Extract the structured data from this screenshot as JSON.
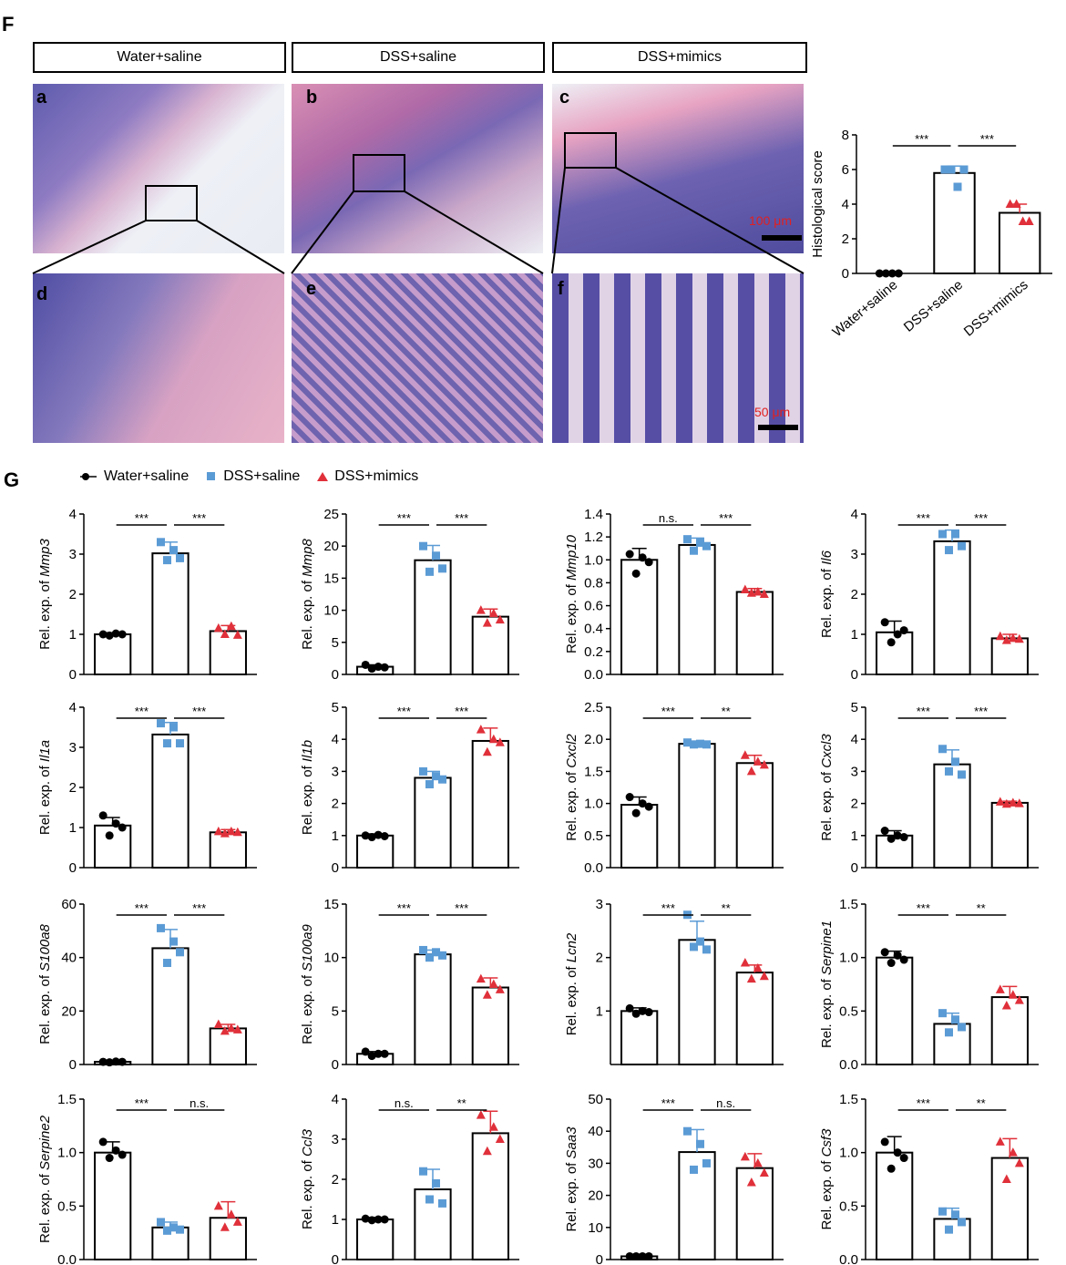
{
  "panel_f": {
    "letter": "F",
    "headers": [
      "Water+saline",
      "DSS+saline",
      "DSS+mimics"
    ],
    "sub_letters": [
      "a",
      "b",
      "c",
      "d",
      "e",
      "f"
    ],
    "scale_top": "100 μm",
    "scale_bottom": "50 μm"
  },
  "panel_g": {
    "letter": "G",
    "legend": [
      {
        "label": "Water+saline",
        "color": "#000000",
        "marker": "circle"
      },
      {
        "label": "DSS+saline",
        "color": "#5b9bd5",
        "marker": "square"
      },
      {
        "label": "DSS+mimics",
        "color": "#e0303a",
        "marker": "triangle"
      }
    ]
  },
  "chart_data": [
    {
      "type": "bar",
      "panel": "F",
      "ylabel": "Histological score",
      "categories": [
        "Water+saline",
        "DSS+saline",
        "DSS+mimics"
      ],
      "values": [
        0,
        5.8,
        3.5
      ],
      "errors": [
        0,
        0.4,
        0.5
      ],
      "points": [
        [
          0,
          0,
          0,
          0
        ],
        [
          6,
          6,
          5,
          6
        ],
        [
          4,
          4,
          3,
          3
        ]
      ],
      "ylim": [
        0,
        8
      ],
      "yticks": [
        "0",
        "2",
        "4",
        "6",
        "8"
      ],
      "sig": [
        "***",
        "***"
      ]
    },
    {
      "type": "bar",
      "ylabel_prefix": "Rel. exp. of ",
      "gene": "Mmp3",
      "values": [
        1.0,
        3.02,
        1.08
      ],
      "errors": [
        0.04,
        0.28,
        0.14
      ],
      "points": [
        [
          1.0,
          0.97,
          1.02,
          1.0
        ],
        [
          3.3,
          2.85,
          3.1,
          2.9
        ],
        [
          1.15,
          1.0,
          1.2,
          0.98
        ]
      ],
      "ylim": [
        0,
        4
      ],
      "yticks": [
        "0",
        "1",
        "2",
        "3",
        "4"
      ],
      "sig": [
        "***",
        "***"
      ]
    },
    {
      "type": "bar",
      "ylabel_prefix": "Rel. exp. of ",
      "gene": "Mmp8",
      "values": [
        1.2,
        17.8,
        9.0
      ],
      "errors": [
        0.3,
        2.3,
        1.2
      ],
      "points": [
        [
          1.5,
          0.9,
          1.2,
          1.1
        ],
        [
          20,
          16,
          18.5,
          16.5
        ],
        [
          10,
          8,
          9.5,
          8.5
        ]
      ],
      "ylim": [
        0,
        25
      ],
      "yticks": [
        "0",
        "5",
        "10",
        "15",
        "20",
        "25"
      ],
      "sig": [
        "***",
        "***"
      ]
    },
    {
      "type": "bar",
      "ylabel_prefix": "Rel. exp. of ",
      "gene": "Mmp10",
      "values": [
        1.0,
        1.13,
        0.72
      ],
      "errors": [
        0.1,
        0.06,
        0.03
      ],
      "points": [
        [
          1.05,
          0.88,
          1.02,
          0.98
        ],
        [
          1.18,
          1.08,
          1.15,
          1.12
        ],
        [
          0.74,
          0.71,
          0.72,
          0.7
        ]
      ],
      "ylim": [
        0,
        1.4
      ],
      "yticks": [
        "0.0",
        "0.2",
        "0.4",
        "0.6",
        "0.8",
        "1.0",
        "1.2",
        "1.4"
      ],
      "sig": [
        "n.s.",
        "***"
      ]
    },
    {
      "type": "bar",
      "ylabel_prefix": "Rel. exp. of ",
      "gene": "Il6",
      "values": [
        1.05,
        3.32,
        0.9
      ],
      "errors": [
        0.28,
        0.28,
        0.1
      ],
      "points": [
        [
          1.3,
          0.8,
          1.0,
          1.1
        ],
        [
          3.5,
          3.1,
          3.5,
          3.2
        ],
        [
          0.95,
          0.85,
          0.9,
          0.88
        ]
      ],
      "ylim": [
        0,
        4
      ],
      "yticks": [
        "0",
        "1",
        "2",
        "3",
        "4"
      ],
      "sig": [
        "***",
        "***"
      ]
    },
    {
      "type": "bar",
      "ylabel_prefix": "Rel. exp. of ",
      "gene": "Il1a",
      "values": [
        1.05,
        3.32,
        0.88
      ],
      "errors": [
        0.2,
        0.3,
        0.07
      ],
      "points": [
        [
          1.3,
          0.8,
          1.1,
          1.0
        ],
        [
          3.6,
          3.1,
          3.5,
          3.1
        ],
        [
          0.9,
          0.85,
          0.9,
          0.88
        ]
      ],
      "ylim": [
        0,
        4
      ],
      "yticks": [
        "0",
        "1",
        "2",
        "3",
        "4"
      ],
      "sig": [
        "***",
        "***"
      ]
    },
    {
      "type": "bar",
      "ylabel_prefix": "Rel. exp. of ",
      "gene": "Il1b",
      "values": [
        1.0,
        2.8,
        3.95
      ],
      "errors": [
        0.05,
        0.2,
        0.4
      ],
      "points": [
        [
          1.0,
          0.95,
          1.02,
          0.98
        ],
        [
          3.0,
          2.6,
          2.85,
          2.75
        ],
        [
          4.3,
          3.6,
          4.0,
          3.9
        ]
      ],
      "ylim": [
        0,
        5
      ],
      "yticks": [
        "0",
        "1",
        "2",
        "3",
        "4",
        "5"
      ],
      "sig": [
        "***",
        "***"
      ]
    },
    {
      "type": "bar",
      "ylabel_prefix": "Rel. exp. of ",
      "gene": "Cxcl2",
      "values": [
        0.98,
        1.93,
        1.63
      ],
      "errors": [
        0.12,
        0.02,
        0.12
      ],
      "points": [
        [
          1.1,
          0.85,
          1.0,
          0.95
        ],
        [
          1.95,
          1.92,
          1.93,
          1.92
        ],
        [
          1.75,
          1.5,
          1.65,
          1.6
        ]
      ],
      "ylim": [
        0,
        2.5
      ],
      "yticks": [
        "0.0",
        "0.5",
        "1.0",
        "1.5",
        "2.0",
        "2.5"
      ],
      "sig": [
        "***",
        "**"
      ]
    },
    {
      "type": "bar",
      "ylabel_prefix": "Rel. exp. of ",
      "gene": "Cxcl3",
      "values": [
        1.0,
        3.22,
        2.02
      ],
      "errors": [
        0.15,
        0.45,
        0.05
      ],
      "points": [
        [
          1.15,
          0.9,
          1.0,
          0.95
        ],
        [
          3.7,
          3.0,
          3.3,
          2.9
        ],
        [
          2.05,
          1.98,
          2.02,
          2.0
        ]
      ],
      "ylim": [
        0,
        5
      ],
      "yticks": [
        "0",
        "1",
        "2",
        "3",
        "4",
        "5"
      ],
      "sig": [
        "***",
        "***"
      ]
    },
    {
      "type": "bar",
      "ylabel_prefix": "Rel. exp. of ",
      "gene": "S100a8",
      "values": [
        1.0,
        43.5,
        13.5
      ],
      "errors": [
        0.3,
        7.0,
        1.5
      ],
      "points": [
        [
          1,
          0.8,
          1.1,
          1.0
        ],
        [
          51,
          38,
          46,
          42
        ],
        [
          15,
          12.5,
          13.5,
          13
        ]
      ],
      "ylim": [
        0,
        60
      ],
      "yticks": [
        "0",
        "20",
        "40",
        "60"
      ],
      "sig": [
        "***",
        "***"
      ]
    },
    {
      "type": "bar",
      "ylabel_prefix": "Rel. exp. of ",
      "gene": "S100a9",
      "values": [
        1.0,
        10.3,
        7.2
      ],
      "errors": [
        0.2,
        0.4,
        0.9
      ],
      "points": [
        [
          1.2,
          0.8,
          1.0,
          1.0
        ],
        [
          10.7,
          10.0,
          10.5,
          10.2
        ],
        [
          8.0,
          6.5,
          7.5,
          7.0
        ]
      ],
      "ylim": [
        0,
        15
      ],
      "yticks": [
        "0",
        "5",
        "10",
        "15"
      ],
      "sig": [
        "***",
        "***"
      ]
    },
    {
      "type": "bar",
      "ylabel_prefix": "Rel. exp. of ",
      "gene": "Lcn2",
      "values": [
        1.0,
        2.33,
        1.72
      ],
      "errors": [
        0.06,
        0.35,
        0.14
      ],
      "points": [
        [
          1.05,
          0.95,
          1.0,
          0.98
        ],
        [
          2.8,
          2.2,
          2.3,
          2.15
        ],
        [
          1.9,
          1.6,
          1.8,
          1.65
        ]
      ],
      "ylim": [
        0,
        3
      ],
      "yticks": [
        "1",
        "2",
        "3"
      ],
      "sig": [
        "***",
        "**"
      ]
    },
    {
      "type": "bar",
      "ylabel_prefix": "Rel. exp. of ",
      "gene": "Serpine1",
      "values": [
        1.0,
        0.38,
        0.63
      ],
      "errors": [
        0.06,
        0.1,
        0.1
      ],
      "points": [
        [
          1.05,
          0.95,
          1.02,
          0.98
        ],
        [
          0.48,
          0.3,
          0.42,
          0.35
        ],
        [
          0.7,
          0.55,
          0.65,
          0.6
        ]
      ],
      "ylim": [
        0,
        1.5
      ],
      "yticks": [
        "0.0",
        "0.5",
        "1.0",
        "1.5"
      ],
      "sig": [
        "***",
        "**"
      ]
    },
    {
      "type": "bar",
      "ylabel_prefix": "Rel. exp. of ",
      "gene": "Serpine2",
      "values": [
        1.0,
        0.3,
        0.39
      ],
      "errors": [
        0.1,
        0.05,
        0.15
      ],
      "points": [
        [
          1.1,
          0.95,
          1.02,
          0.98
        ],
        [
          0.35,
          0.27,
          0.3,
          0.28
        ],
        [
          0.5,
          0.3,
          0.42,
          0.35
        ]
      ],
      "ylim": [
        0,
        1.5
      ],
      "yticks": [
        "0.0",
        "0.5",
        "1.0",
        "1.5"
      ],
      "sig": [
        "***",
        "n.s."
      ]
    },
    {
      "type": "bar",
      "ylabel_prefix": "Rel. exp. of ",
      "gene": "Ccl3",
      "values": [
        1.0,
        1.75,
        3.15
      ],
      "errors": [
        0.05,
        0.5,
        0.55
      ],
      "points": [
        [
          1.02,
          0.98,
          1.0,
          1.0
        ],
        [
          2.2,
          1.5,
          1.9,
          1.4
        ],
        [
          3.6,
          2.7,
          3.3,
          3.0
        ]
      ],
      "ylim": [
        0,
        4
      ],
      "yticks": [
        "0",
        "1",
        "2",
        "3",
        "4"
      ],
      "sig": [
        "n.s.",
        "**"
      ]
    },
    {
      "type": "bar",
      "ylabel_prefix": "Rel. exp. of ",
      "gene": "Saa3",
      "values": [
        1.0,
        33.5,
        28.5
      ],
      "errors": [
        0.3,
        7.0,
        4.5
      ],
      "points": [
        [
          1,
          1,
          1,
          1
        ],
        [
          40,
          28,
          36,
          30
        ],
        [
          32,
          24,
          30,
          27
        ]
      ],
      "ylim": [
        0,
        50
      ],
      "yticks": [
        "0",
        "10",
        "20",
        "30",
        "40",
        "50"
      ],
      "sig": [
        "***",
        "n.s."
      ]
    },
    {
      "type": "bar",
      "ylabel_prefix": "Rel. exp. of ",
      "gene": "Csf3",
      "values": [
        1.0,
        0.38,
        0.95
      ],
      "errors": [
        0.15,
        0.1,
        0.18
      ],
      "points": [
        [
          1.1,
          0.85,
          1.0,
          0.95
        ],
        [
          0.45,
          0.28,
          0.42,
          0.35
        ],
        [
          1.1,
          0.75,
          1.0,
          0.9
        ]
      ],
      "ylim": [
        0,
        1.5
      ],
      "yticks": [
        "0.0",
        "0.5",
        "1.0",
        "1.5"
      ],
      "sig": [
        "***",
        "**"
      ]
    }
  ]
}
